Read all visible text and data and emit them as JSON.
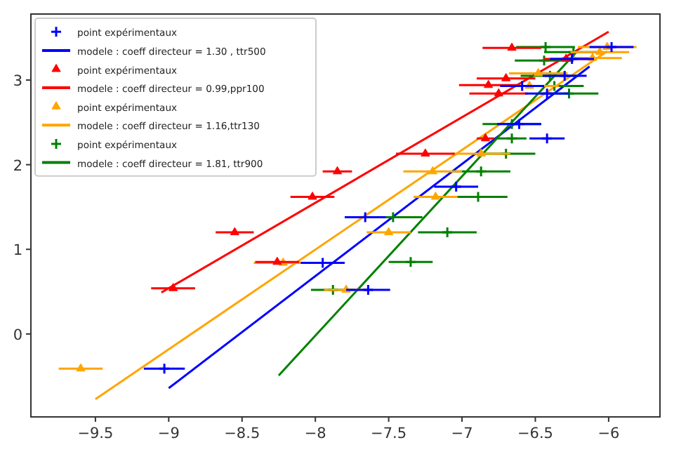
{
  "chart_data": {
    "type": "scatter",
    "xlim": [
      -9.94,
      -5.65
    ],
    "ylim": [
      -0.98,
      3.78
    ],
    "xticks": [
      -9.5,
      -9.0,
      -8.5,
      -8.0,
      -7.5,
      -7.0,
      -6.5,
      -6.0
    ],
    "yticks": [
      0,
      1,
      2,
      3
    ],
    "legend": "top left",
    "grid": false,
    "series": [
      {
        "name": "point expérimentaux",
        "color": "#0000ff",
        "marker": "cross",
        "x": [
          -9.03,
          -7.95,
          -7.64,
          -7.66,
          -7.04,
          -6.42,
          -6.61,
          -6.59,
          -6.42,
          -6.3,
          -6.25,
          -5.98
        ],
        "values": [
          -0.41,
          0.84,
          0.52,
          1.38,
          1.74,
          2.31,
          2.48,
          2.93,
          2.84,
          3.05,
          3.25,
          3.39
        ],
        "xerrors": [
          0.14,
          0.15,
          0.15,
          0.14,
          0.15,
          0.12,
          0.15,
          0.15,
          0.15,
          0.15,
          0.15,
          0.15
        ]
      },
      {
        "type": "line",
        "name": "modele : coeff directeur = 1.30 , ttr500",
        "color": "#0000ff",
        "x": [
          -9.0,
          -6.13
        ],
        "values": [
          -0.64,
          3.16
        ]
      },
      {
        "name": "point expérimentaux",
        "color": "#ff0000",
        "marker": "triangle",
        "x": [
          -8.97,
          -8.55,
          -8.26,
          -8.02,
          -7.85,
          -7.25,
          -6.84,
          -6.75,
          -6.82,
          -6.7,
          -6.66,
          -6.29
        ],
        "values": [
          0.54,
          1.2,
          0.85,
          1.62,
          1.92,
          2.13,
          2.31,
          2.84,
          2.94,
          3.02,
          3.38,
          3.25
        ],
        "xerrors": [
          0.15,
          0.13,
          0.15,
          0.15,
          0.1,
          0.2,
          0.06,
          0.2,
          0.2,
          0.2,
          0.2,
          0.15
        ]
      },
      {
        "type": "line",
        "name": "modele : coeff directeur = 0.99,ppr100",
        "color": "#ff0000",
        "x": [
          -9.05,
          -6.0
        ],
        "values": [
          0.49,
          3.57
        ]
      },
      {
        "name": "point expérimentaux",
        "color": "#ffa500",
        "marker": "triangle",
        "x": [
          -9.6,
          -8.22,
          -7.79,
          -7.5,
          -7.18,
          -7.2,
          -6.87,
          -6.54,
          -6.48,
          -6.11,
          -6.06,
          -6.01
        ],
        "values": [
          -0.41,
          0.84,
          0.52,
          1.2,
          1.62,
          1.92,
          2.13,
          2.93,
          3.08,
          3.26,
          3.33,
          3.39
        ],
        "xerrors": [
          0.15,
          0.2,
          0.15,
          0.15,
          0.15,
          0.2,
          0.2,
          0.2,
          0.2,
          0.2,
          0.2,
          0.2
        ]
      },
      {
        "type": "line",
        "name": "modele : coeff directeur = 1.16,ttr130",
        "color": "#ffa500",
        "x": [
          -9.5,
          -6.01
        ],
        "values": [
          -0.77,
          3.34
        ]
      },
      {
        "name": "point expérimentaux",
        "color": "#008000",
        "marker": "cross",
        "x": [
          -7.88,
          -7.35,
          -7.1,
          -7.47,
          -6.89,
          -6.87,
          -6.7,
          -6.66,
          -6.66,
          -6.27,
          -6.37,
          -6.4,
          -6.44,
          -6.43,
          -6.24
        ],
        "values": [
          0.52,
          0.85,
          1.2,
          1.38,
          1.62,
          1.92,
          2.13,
          2.31,
          2.48,
          2.84,
          2.93,
          3.05,
          3.23,
          3.39,
          3.33
        ],
        "xerrors": [
          0.15,
          0.15,
          0.2,
          0.2,
          0.2,
          0.2,
          0.2,
          0.1,
          0.2,
          0.2,
          0.2,
          0.2,
          0.2,
          0.2,
          0.2
        ]
      },
      {
        "type": "line",
        "name": "modele : coeff directeur = 1.81, ttr900",
        "color": "#008000",
        "x": [
          -8.25,
          -6.22
        ],
        "values": [
          -0.49,
          3.33
        ]
      }
    ]
  }
}
